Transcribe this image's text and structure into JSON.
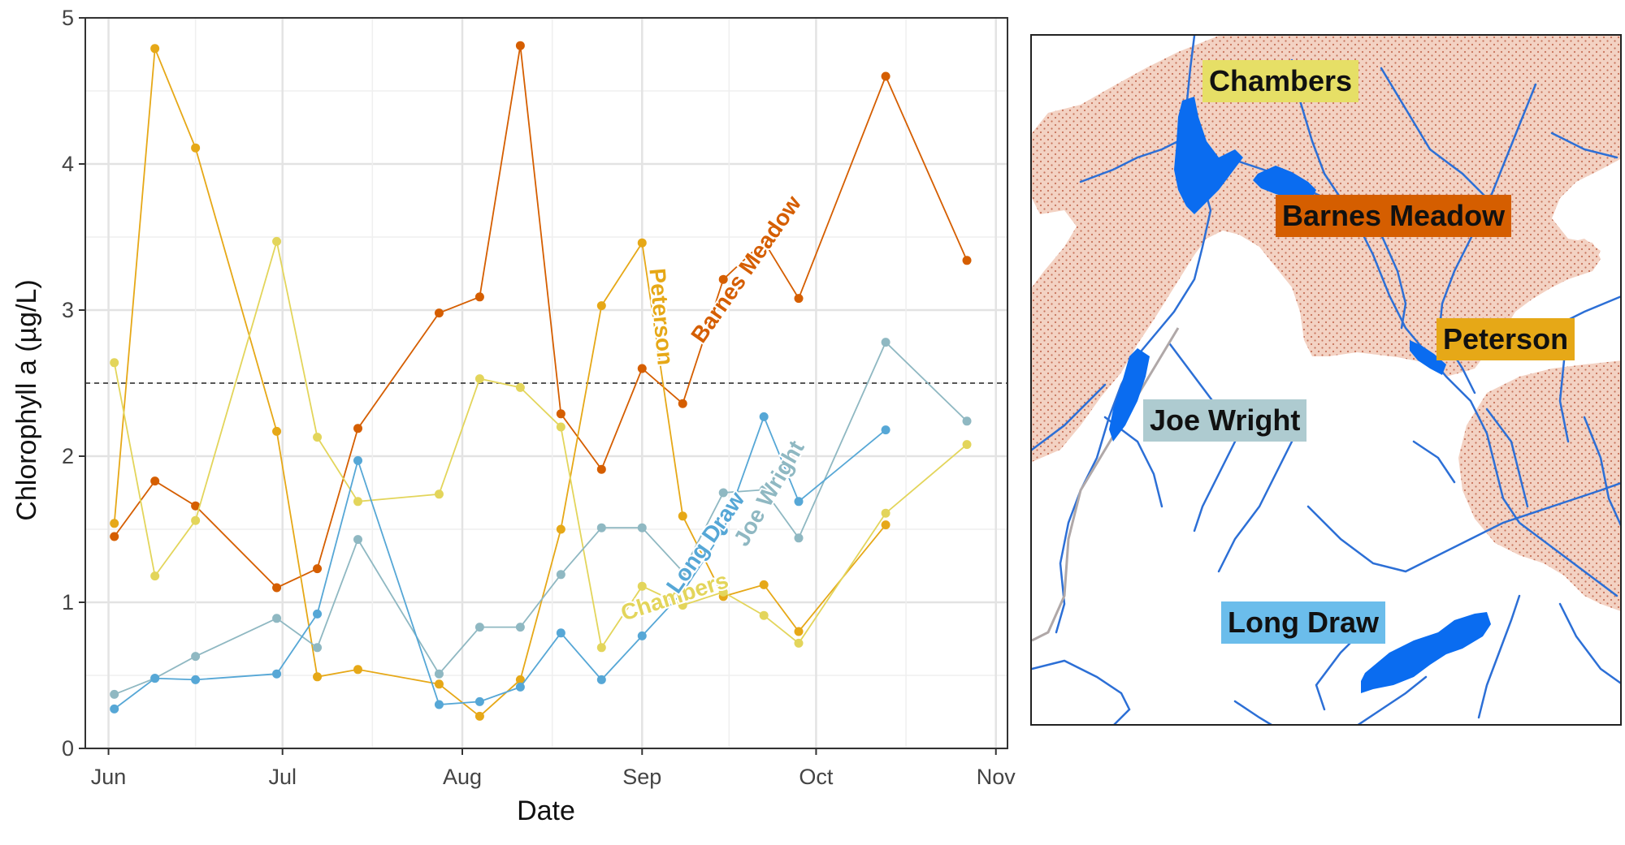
{
  "chart_data": {
    "type": "line",
    "title": "",
    "xlabel": "Date",
    "ylabel": "Chlorophyll a (µg/L)",
    "ylim": [
      0,
      5
    ],
    "xlim": [
      "2019-05-28",
      "2019-11-03"
    ],
    "y_ticks": [
      "0",
      "1",
      "2",
      "3",
      "4",
      "5"
    ],
    "x_ticks": [
      {
        "label": "Jun",
        "date": "2019-06-01"
      },
      {
        "label": "Jul",
        "date": "2019-07-01"
      },
      {
        "label": "Aug",
        "date": "2019-08-01"
      },
      {
        "label": "Sep",
        "date": "2019-09-01"
      },
      {
        "label": "Oct",
        "date": "2019-10-01"
      },
      {
        "label": "Nov",
        "date": "2019-11-01"
      }
    ],
    "grid": true,
    "reference_line": 2.5,
    "series": [
      {
        "name": "Barnes Meadow",
        "color": "#D55E00",
        "label_text": "Barnes Meadow",
        "points": [
          [
            "2019-06-02",
            1.45
          ],
          [
            "2019-06-09",
            1.83
          ],
          [
            "2019-06-16",
            1.66
          ],
          [
            "2019-06-30",
            1.1
          ],
          [
            "2019-07-07",
            1.23
          ],
          [
            "2019-07-14",
            2.19
          ],
          [
            "2019-07-28",
            2.98
          ],
          [
            "2019-08-04",
            3.09
          ],
          [
            "2019-08-11",
            4.81
          ],
          [
            "2019-08-18",
            2.29
          ],
          [
            "2019-08-25",
            1.91
          ],
          [
            "2019-09-01",
            2.6
          ],
          [
            "2019-09-08",
            2.36
          ],
          [
            "2019-09-15",
            3.21
          ],
          [
            "2019-09-22",
            3.47
          ],
          [
            "2019-09-28",
            3.08
          ],
          [
            "2019-10-13",
            4.6
          ],
          [
            "2019-10-27",
            3.34
          ]
        ]
      },
      {
        "name": "Peterson",
        "color": "#E6A817",
        "label_text": "Peterson",
        "points": [
          [
            "2019-06-02",
            1.54
          ],
          [
            "2019-06-09",
            4.79
          ],
          [
            "2019-06-16",
            4.11
          ],
          [
            "2019-06-30",
            2.17
          ],
          [
            "2019-07-07",
            0.49
          ],
          [
            "2019-07-14",
            0.54
          ],
          [
            "2019-07-28",
            0.44
          ],
          [
            "2019-08-04",
            0.22
          ],
          [
            "2019-08-11",
            0.47
          ],
          [
            "2019-08-18",
            1.5
          ],
          [
            "2019-08-25",
            3.03
          ],
          [
            "2019-09-01",
            3.46
          ],
          [
            "2019-09-08",
            1.59
          ],
          [
            "2019-09-15",
            1.04
          ],
          [
            "2019-09-22",
            1.12
          ],
          [
            "2019-09-28",
            0.8
          ],
          [
            "2019-10-13",
            1.53
          ]
        ]
      },
      {
        "name": "Chambers",
        "color": "#E3D55B",
        "label_text": "Chambers",
        "points": [
          [
            "2019-06-02",
            2.64
          ],
          [
            "2019-06-09",
            1.18
          ],
          [
            "2019-06-16",
            1.56
          ],
          [
            "2019-06-30",
            3.47
          ],
          [
            "2019-07-07",
            2.13
          ],
          [
            "2019-07-14",
            1.69
          ],
          [
            "2019-07-28",
            1.74
          ],
          [
            "2019-08-04",
            2.53
          ],
          [
            "2019-08-11",
            2.47
          ],
          [
            "2019-08-18",
            2.2
          ],
          [
            "2019-08-25",
            0.69
          ],
          [
            "2019-09-01",
            1.11
          ],
          [
            "2019-09-08",
            0.98
          ],
          [
            "2019-09-15",
            1.07
          ],
          [
            "2019-09-22",
            0.91
          ],
          [
            "2019-09-28",
            0.72
          ],
          [
            "2019-10-13",
            1.61
          ],
          [
            "2019-10-27",
            2.08
          ]
        ]
      },
      {
        "name": "Joe Wright",
        "color": "#8FB8C2",
        "label_text": "Joe Wright",
        "points": [
          [
            "2019-06-02",
            0.37
          ],
          [
            "2019-06-09",
            0.48
          ],
          [
            "2019-06-16",
            0.63
          ],
          [
            "2019-06-30",
            0.89
          ],
          [
            "2019-07-07",
            0.69
          ],
          [
            "2019-07-14",
            1.43
          ],
          [
            "2019-07-28",
            0.51
          ],
          [
            "2019-08-04",
            0.83
          ],
          [
            "2019-08-11",
            0.83
          ],
          [
            "2019-08-18",
            1.19
          ],
          [
            "2019-08-25",
            1.51
          ],
          [
            "2019-09-01",
            1.51
          ],
          [
            "2019-09-08",
            1.21
          ],
          [
            "2019-09-15",
            1.75
          ],
          [
            "2019-09-22",
            1.77
          ],
          [
            "2019-09-28",
            1.44
          ],
          [
            "2019-10-13",
            2.78
          ],
          [
            "2019-10-27",
            2.24
          ]
        ]
      },
      {
        "name": "Long Draw",
        "color": "#56A7D6",
        "label_text": "Long Draw",
        "points": [
          [
            "2019-06-02",
            0.27
          ],
          [
            "2019-06-09",
            0.48
          ],
          [
            "2019-06-16",
            0.47
          ],
          [
            "2019-06-30",
            0.51
          ],
          [
            "2019-07-07",
            0.92
          ],
          [
            "2019-07-14",
            1.97
          ],
          [
            "2019-07-28",
            0.3
          ],
          [
            "2019-08-04",
            0.32
          ],
          [
            "2019-08-11",
            0.42
          ],
          [
            "2019-08-18",
            0.79
          ],
          [
            "2019-08-25",
            0.47
          ],
          [
            "2019-09-01",
            0.77
          ],
          [
            "2019-09-08",
            1.07
          ],
          [
            "2019-09-15",
            1.49
          ],
          [
            "2019-09-22",
            2.27
          ],
          [
            "2019-09-28",
            1.69
          ],
          [
            "2019-10-13",
            2.18
          ]
        ]
      }
    ]
  },
  "map": {
    "labels": [
      {
        "text": "Chambers",
        "color": "#E6DF66"
      },
      {
        "text": "Barnes Meadow",
        "color": "#D55E00"
      },
      {
        "text": "Peterson",
        "color": "#E6A817"
      },
      {
        "text": "Joe Wright",
        "color": "#AECBD0"
      },
      {
        "text": "Long Draw",
        "color": "#6BBDEB"
      }
    ]
  }
}
